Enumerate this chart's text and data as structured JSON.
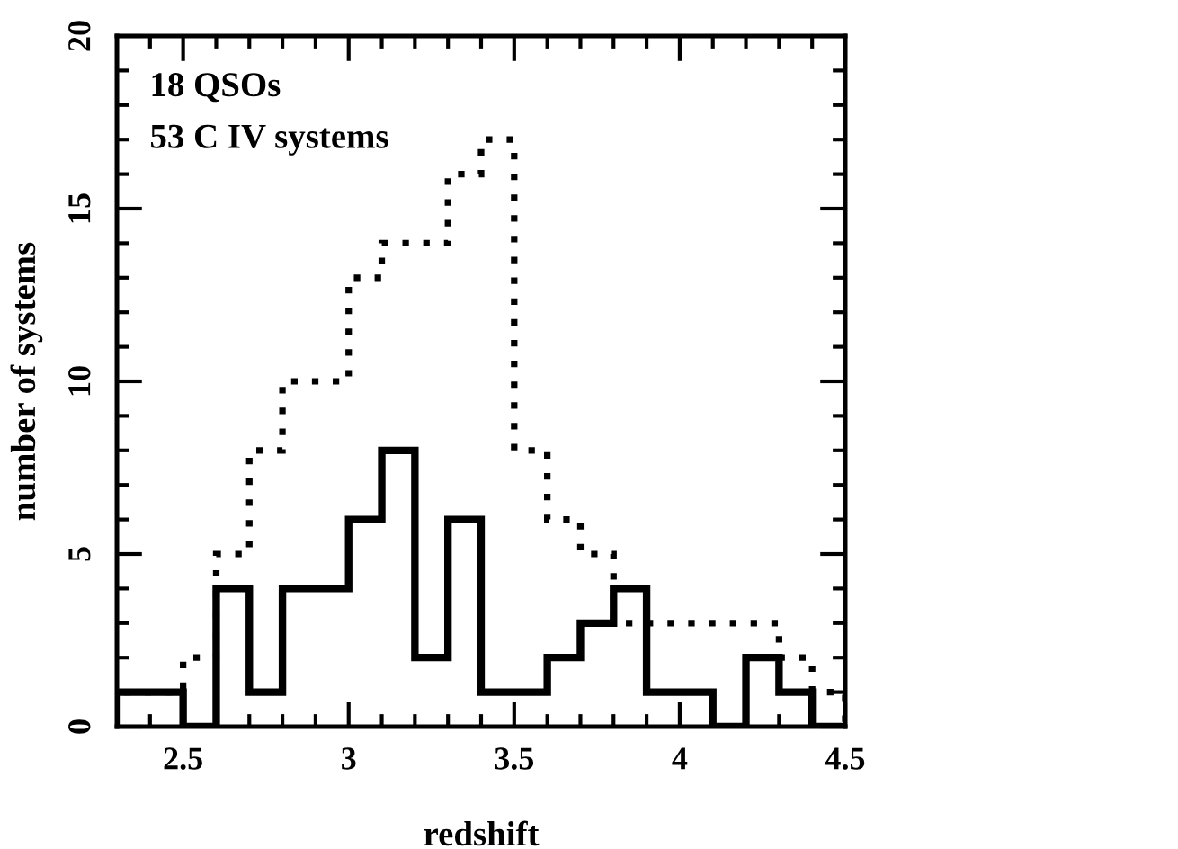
{
  "chart_data": {
    "type": "histogram",
    "xlabel": "redshift",
    "ylabel": "number of systems",
    "annotations": [
      "18 QSOs",
      "53 C IV systems"
    ],
    "bins": [
      2.3,
      2.4,
      2.5,
      2.6,
      2.7,
      2.8,
      2.9,
      3.0,
      3.1,
      3.2,
      3.3,
      3.4,
      3.5,
      3.6,
      3.7,
      3.8,
      3.9,
      4.0,
      4.1,
      4.2,
      4.3,
      4.4,
      4.5
    ],
    "series": [
      {
        "color": "#000000",
        "line_style": "solid",
        "values": [
          1,
          1,
          0,
          4,
          1,
          4,
          4,
          6,
          8,
          2,
          6,
          1,
          1,
          2,
          3,
          4,
          1,
          1,
          0,
          2,
          1,
          0
        ]
      },
      {
        "color": "#000000",
        "line_style": "dotted",
        "values": [
          1,
          1,
          2,
          5,
          8,
          10,
          10,
          13,
          14,
          14,
          16,
          17,
          8,
          6,
          5,
          3,
          3,
          3,
          3,
          3,
          2,
          1
        ]
      }
    ],
    "xlim": [
      2.3,
      4.5
    ],
    "ylim": [
      0,
      20
    ],
    "xticks": [
      {
        "value": 2.4,
        "label": null
      },
      2.5,
      {
        "value": 2.6,
        "label": null
      },
      {
        "value": 2.7,
        "label": null
      },
      {
        "value": 2.8,
        "label": null
      },
      {
        "value": 2.9,
        "label": null
      },
      3,
      {
        "value": 3.1,
        "label": null
      },
      {
        "value": 3.2,
        "label": null
      },
      {
        "value": 3.3,
        "label": null
      },
      {
        "value": 3.4,
        "label": null
      },
      3.5,
      {
        "value": 3.6,
        "label": null
      },
      {
        "value": 3.7,
        "label": null
      },
      {
        "value": 3.8,
        "label": null
      },
      {
        "value": 3.9,
        "label": null
      },
      4,
      {
        "value": 4.1,
        "label": null
      },
      {
        "value": 4.2,
        "label": null
      },
      {
        "value": 4.3,
        "label": null
      },
      {
        "value": 4.4,
        "label": null
      },
      4.5
    ],
    "yticks": [
      0,
      {
        "value": 1,
        "label": null
      },
      {
        "value": 2,
        "label": null
      },
      {
        "value": 3,
        "label": null
      },
      {
        "value": 4,
        "label": null
      },
      5,
      {
        "value": 6,
        "label": null
      },
      {
        "value": 7,
        "label": null
      },
      {
        "value": 8,
        "label": null
      },
      {
        "value": 9,
        "label": null
      },
      10,
      {
        "value": 11,
        "label": null
      },
      {
        "value": 12,
        "label": null
      },
      {
        "value": 13,
        "label": null
      },
      {
        "value": 14,
        "label": null
      },
      15,
      {
        "value": 16,
        "label": null
      },
      {
        "value": 17,
        "label": null
      },
      {
        "value": 18,
        "label": null
      },
      {
        "value": 19,
        "label": null
      },
      20
    ],
    "grid": false
  }
}
